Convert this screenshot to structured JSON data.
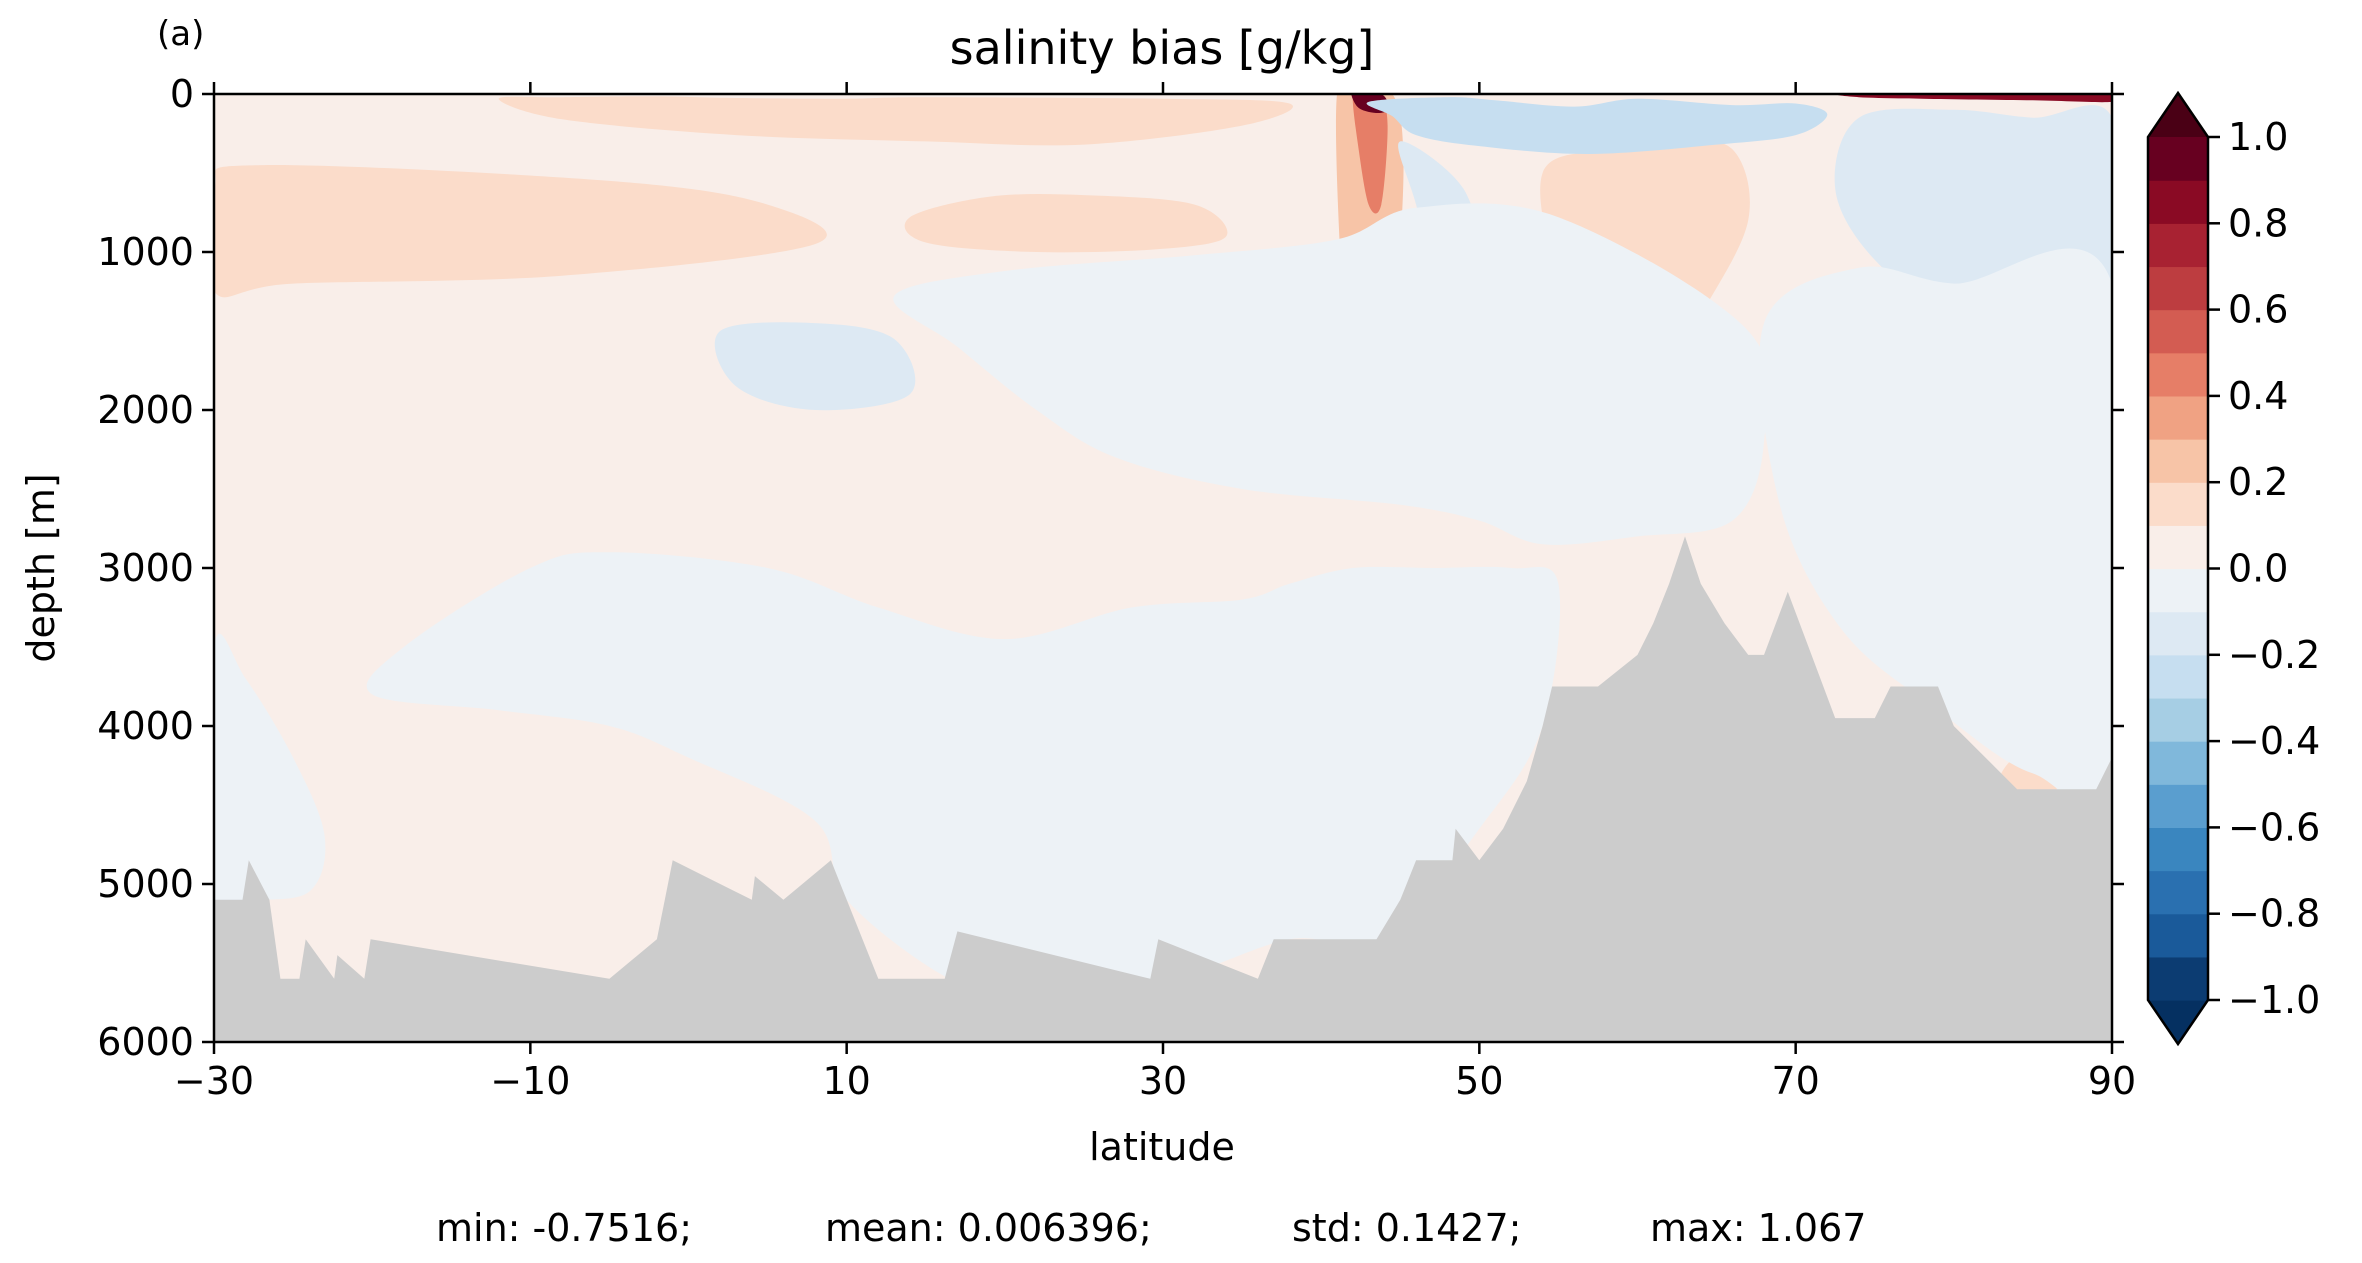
{
  "panel_label": "(a)",
  "stats": {
    "min": "min: -0.7516;",
    "mean": "mean: 0.006396;",
    "std": "std: 0.1427;",
    "max": "max: 1.067"
  },
  "chart_data": {
    "type": "heatmap",
    "title": "salinity bias [g/kg]",
    "xlabel": "latitude",
    "ylabel": "depth [m]",
    "xlim": [
      -30,
      90
    ],
    "ylim": [
      6000,
      0
    ],
    "x_ticks": [
      -30,
      -10,
      10,
      30,
      50,
      70,
      90
    ],
    "x_tick_labels": [
      "−30",
      "−10",
      "10",
      "30",
      "50",
      "70",
      "90"
    ],
    "y_ticks": [
      0,
      1000,
      2000,
      3000,
      4000,
      5000,
      6000
    ],
    "y_tick_labels": [
      "0",
      "1000",
      "2000",
      "3000",
      "4000",
      "5000",
      "6000"
    ],
    "colorbar": {
      "levels": [
        -1.0,
        -0.9,
        -0.8,
        -0.7,
        -0.6,
        -0.5,
        -0.4,
        -0.3,
        -0.2,
        -0.1,
        0.0,
        0.1,
        0.2,
        0.3,
        0.4,
        0.5,
        0.6,
        0.7,
        0.8,
        0.9,
        1.0
      ],
      "tick_values": [
        -1.0,
        -0.8,
        -0.6,
        -0.4,
        -0.2,
        0.0,
        0.2,
        0.4,
        0.6,
        0.8,
        1.0
      ],
      "tick_labels": [
        "−1.0",
        "−0.8",
        "−0.6",
        "−0.4",
        "−0.2",
        "0.0",
        "0.2",
        "0.4",
        "0.6",
        "0.8",
        "1.0"
      ],
      "extend": "both",
      "colors": [
        "#0c3c72",
        "#1a5a9a",
        "#2a70b0",
        "#3a86bf",
        "#5a9ecf",
        "#80b8db",
        "#a6cee4",
        "#c6def0",
        "#dde9f3",
        "#edf2f6",
        "#f9eee9",
        "#fbdcca",
        "#f7c4a7",
        "#f0a283",
        "#e67e67",
        "#d35c52",
        "#bd3d40",
        "#a82232",
        "#8a0a24",
        "#670020"
      ],
      "under_color": "#053061",
      "over_color": "#4a0015"
    },
    "land_color": "#cccccc",
    "bathymetry": {
      "lat": [
        -30,
        -28.2,
        -27.8,
        -26.5,
        -25.8,
        -24.6,
        -24.2,
        -22.4,
        -22.2,
        -20.5,
        -20.1,
        -5,
        -2,
        -1,
        4,
        4.2,
        6,
        9,
        10,
        12,
        16.2,
        17,
        29.2,
        29.7,
        36,
        37,
        43.5,
        45,
        46,
        48.3,
        48.5,
        50,
        51.5,
        53,
        54,
        54.6,
        57.5,
        60,
        61,
        62,
        63,
        64,
        65.5,
        67,
        68,
        69.5,
        71,
        72.5,
        75,
        76,
        79,
        80,
        82,
        84,
        86,
        89,
        90
      ],
      "floor": [
        5100,
        5100,
        4850,
        5100,
        5600,
        5600,
        5350,
        5600,
        5450,
        5600,
        5350,
        5600,
        5350,
        4850,
        5100,
        4950,
        5100,
        4850,
        5100,
        5600,
        5600,
        5300,
        5600,
        5350,
        5600,
        5350,
        5350,
        5100,
        4850,
        4850,
        4650,
        4850,
        4650,
        4350,
        4000,
        3750,
        3750,
        3550,
        3350,
        3100,
        2800,
        3100,
        3350,
        3550,
        3550,
        3150,
        3550,
        3950,
        3950,
        3750,
        3750,
        4000,
        4200,
        4400,
        4400,
        4400,
        4200
      ]
    },
    "features": [
      {
        "lat": [
          -30,
          -27,
          -5,
          5,
          8,
          -8,
          -25,
          -30
        ],
        "depth": [
          600,
          450,
          550,
          700,
          950,
          1150,
          1200,
          1250
        ],
        "value": 0.15
      },
      {
        "lat": [
          -12,
          -8,
          -2,
          3,
          10,
          15,
          30,
          38,
          35,
          25,
          15,
          3,
          -8
        ],
        "depth": [
          30,
          20,
          15,
          25,
          30,
          20,
          30,
          60,
          200,
          320,
          300,
          260,
          160
        ],
        "value": 0.15
      },
      {
        "lat": [
          14,
          19,
          25,
          32,
          34,
          30,
          22,
          15
        ],
        "depth": [
          780,
          650,
          640,
          700,
          900,
          980,
          1000,
          940
        ],
        "value": 0.15
      },
      {
        "lat": [
          41,
          42.2,
          44.5,
          45.2,
          44.8,
          43.8,
          42,
          41.2
        ],
        "depth": [
          0,
          0,
          0,
          400,
          1200,
          2000,
          2000,
          1000
        ],
        "value": 0.25
      },
      {
        "lat": [
          42,
          42.6,
          43.7,
          44.2,
          43.8,
          43,
          42.3
        ],
        "depth": [
          0,
          0,
          0,
          200,
          700,
          700,
          300
        ],
        "value": 0.45
      },
      {
        "lat": [
          41.9,
          42.3,
          43.8,
          44.3,
          43.6,
          42.4
        ],
        "depth": [
          0,
          0,
          0,
          90,
          120,
          90
        ],
        "value": 0.95
      },
      {
        "lat": [
          54,
          58,
          62,
          66,
          67,
          64,
          61,
          58,
          55
        ],
        "depth": [
          500,
          350,
          300,
          350,
          800,
          1400,
          1900,
          1950,
          1200
        ],
        "value": 0.15
      },
      {
        "lat": [
          73,
          80,
          86,
          90,
          90,
          85,
          78,
          74
        ],
        "depth": [
          0,
          0,
          0,
          0,
          50,
          40,
          30,
          20
        ],
        "value": 0.85
      },
      {
        "lat": [
          83,
          85.5,
          86.5,
          85,
          83.5
        ],
        "depth": [
          4300,
          4100,
          4400,
          4550,
          4550
        ],
        "value": 0.15
      },
      {
        "lat": [
          43,
          48,
          51,
          56,
          60,
          66,
          70,
          72,
          70,
          65,
          57,
          50,
          46,
          44.5
        ],
        "depth": [
          50,
          20,
          40,
          80,
          30,
          70,
          60,
          130,
          260,
          320,
          380,
          330,
          260,
          140
        ],
        "value": -0.25
      },
      {
        "lat": [
          45,
          49,
          50,
          48,
          46
        ],
        "depth": [
          300,
          600,
          1100,
          1400,
          700
        ],
        "value": -0.15
      },
      {
        "lat": [
          15,
          22,
          30,
          35,
          40,
          41,
          38,
          32,
          25,
          18
        ],
        "depth": [
          1300,
          1150,
          1100,
          1100,
          1150,
          1550,
          1650,
          1700,
          1650,
          1500
        ],
        "value": -0.15
      },
      {
        "lat": [
          22,
          28,
          35,
          40,
          40.5,
          38,
          30,
          24
        ],
        "depth": [
          1350,
          1240,
          1200,
          1250,
          1450,
          1550,
          1550,
          1500
        ],
        "value": -0.25
      },
      {
        "lat": [
          2,
          8,
          13,
          14,
          8,
          3
        ],
        "depth": [
          1500,
          1450,
          1550,
          1900,
          2000,
          1850
        ],
        "value": -0.15
      },
      {
        "lat": [
          13,
          20,
          32,
          41,
          46,
          55,
          67,
          68,
          66,
          60,
          54,
          50,
          45,
          35,
          27,
          22,
          17
        ],
        "depth": [
          1280,
          1120,
          1020,
          920,
          720,
          780,
          1500,
          2200,
          2700,
          2800,
          2850,
          2700,
          2600,
          2500,
          2300,
          2000,
          1600
        ],
        "value": -0.05
      },
      {
        "lat": [
          74,
          80,
          85,
          90,
          90,
          86,
          80,
          75,
          72.5
        ],
        "depth": [
          150,
          100,
          150,
          150,
          1250,
          1400,
          1400,
          1050,
          600
        ],
        "value": -0.15
      },
      {
        "lat": [
          68,
          74,
          80,
          90,
          90,
          85,
          79,
          73,
          69
        ],
        "depth": [
          1450,
          1100,
          1200,
          1200,
          4250,
          4300,
          3900,
          3400,
          2600
        ],
        "value": -0.05
      },
      {
        "lat": [
          -18,
          -10,
          -5,
          5,
          12,
          20,
          28,
          35,
          38,
          42,
          47,
          52,
          55,
          54,
          50,
          44,
          38,
          30,
          20,
          16.5,
          10,
          8,
          0,
          -5,
          -12,
          -20
        ],
        "depth": [
          3500,
          3000,
          2900,
          3000,
          3250,
          3450,
          3250,
          3200,
          3100,
          3000,
          3000,
          3000,
          3100,
          4000,
          4650,
          5350,
          5350,
          5600,
          5600,
          5600,
          5100,
          4600,
          4200,
          4000,
          3900,
          3800
        ],
        "value": -0.05
      },
      {
        "lat": [
          -30,
          -28,
          -25,
          -23,
          -24,
          -28,
          -30
        ],
        "depth": [
          3500,
          3700,
          4200,
          4700,
          5050,
          5100,
          5100
        ],
        "value": -0.05
      }
    ]
  }
}
